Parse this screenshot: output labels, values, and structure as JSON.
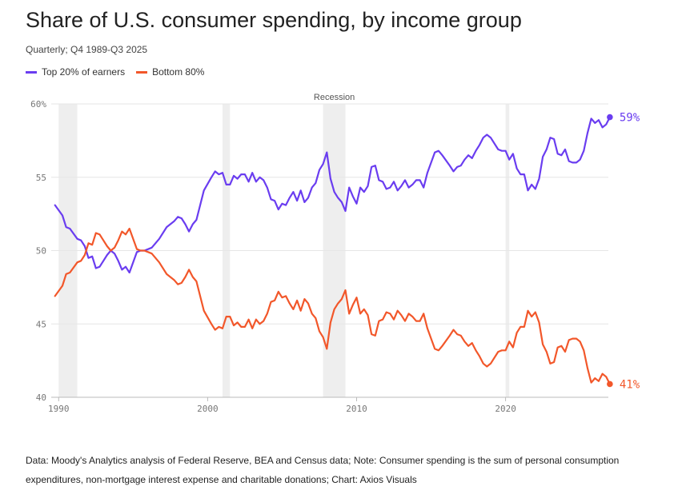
{
  "title": "Share of U.S. consumer spending, by income group",
  "subtitle": "Quarterly; Q4 1989-Q3 2025",
  "legend": {
    "top": "Top 20% of earners",
    "bottom": "Bottom 80%"
  },
  "footer": "Data: Moody's Analytics analysis of Federal Reserve, BEA and Census data; Note: Consumer spending is the sum of personal consumption expenditures, non-mortgage interest expense and charitable donations; Chart: Axios Visuals",
  "colors": {
    "top": "#6a3df0",
    "bottom": "#f2572a",
    "recession": "#eeeeee"
  },
  "chart_data": {
    "type": "line",
    "title": "Share of U.S. consumer spending, by income group",
    "xlabel": "",
    "ylabel": "",
    "xlim": [
      1989.5,
      2026
    ],
    "ylim": [
      40,
      60
    ],
    "x_ticks": [
      "1990",
      "2000",
      "2010",
      "2020"
    ],
    "y_ticks": [
      "60%",
      "55",
      "50",
      "45",
      "40"
    ],
    "recession_label": "Recession",
    "recessions": [
      [
        1990.0,
        1991.25
      ],
      [
        2001.0,
        2001.5
      ],
      [
        2007.75,
        2009.25
      ],
      [
        2020.0,
        2020.25
      ]
    ],
    "end_labels": {
      "top": "59%",
      "bottom": "41%"
    },
    "series": [
      {
        "name": "Top 20% of earners",
        "points": [
          [
            1989.75,
            53.1
          ],
          [
            1990.25,
            52.4
          ],
          [
            1990.5,
            51.6
          ],
          [
            1990.75,
            51.5
          ],
          [
            1991.25,
            50.8
          ],
          [
            1991.5,
            50.7
          ],
          [
            1991.75,
            50.3
          ],
          [
            1992.0,
            49.5
          ],
          [
            1992.25,
            49.6
          ],
          [
            1992.5,
            48.8
          ],
          [
            1992.75,
            48.9
          ],
          [
            1993.25,
            49.7
          ],
          [
            1993.5,
            50.0
          ],
          [
            1993.75,
            49.8
          ],
          [
            1994.0,
            49.3
          ],
          [
            1994.25,
            48.7
          ],
          [
            1994.5,
            48.9
          ],
          [
            1994.75,
            48.5
          ],
          [
            1995.25,
            49.9
          ],
          [
            1995.5,
            50.0
          ],
          [
            1995.75,
            50.0
          ],
          [
            1996.0,
            50.1
          ],
          [
            1996.25,
            50.2
          ],
          [
            1996.75,
            50.8
          ],
          [
            1997.25,
            51.6
          ],
          [
            1997.75,
            52.0
          ],
          [
            1998.0,
            52.3
          ],
          [
            1998.25,
            52.2
          ],
          [
            1998.5,
            51.8
          ],
          [
            1998.75,
            51.3
          ],
          [
            1999.0,
            51.8
          ],
          [
            1999.25,
            52.1
          ],
          [
            1999.75,
            54.1
          ],
          [
            2000.25,
            55.0
          ],
          [
            2000.5,
            55.4
          ],
          [
            2000.75,
            55.2
          ],
          [
            2001.0,
            55.3
          ],
          [
            2001.25,
            54.5
          ],
          [
            2001.5,
            54.5
          ],
          [
            2001.75,
            55.1
          ],
          [
            2002.0,
            54.9
          ],
          [
            2002.25,
            55.2
          ],
          [
            2002.5,
            55.2
          ],
          [
            2002.75,
            54.7
          ],
          [
            2003.0,
            55.3
          ],
          [
            2003.25,
            54.7
          ],
          [
            2003.5,
            55.0
          ],
          [
            2003.75,
            54.8
          ],
          [
            2004.0,
            54.3
          ],
          [
            2004.25,
            53.5
          ],
          [
            2004.5,
            53.4
          ],
          [
            2004.75,
            52.8
          ],
          [
            2005.0,
            53.2
          ],
          [
            2005.25,
            53.1
          ],
          [
            2005.5,
            53.6
          ],
          [
            2005.75,
            54.0
          ],
          [
            2006.0,
            53.4
          ],
          [
            2006.25,
            54.1
          ],
          [
            2006.5,
            53.3
          ],
          [
            2006.75,
            53.6
          ],
          [
            2007.0,
            54.3
          ],
          [
            2007.25,
            54.6
          ],
          [
            2007.5,
            55.5
          ],
          [
            2007.75,
            55.9
          ],
          [
            2008.0,
            56.7
          ],
          [
            2008.25,
            54.9
          ],
          [
            2008.5,
            54.0
          ],
          [
            2008.75,
            53.6
          ],
          [
            2009.0,
            53.3
          ],
          [
            2009.25,
            52.7
          ],
          [
            2009.5,
            54.3
          ],
          [
            2009.75,
            53.7
          ],
          [
            2010.0,
            53.2
          ],
          [
            2010.25,
            54.3
          ],
          [
            2010.5,
            54.0
          ],
          [
            2010.75,
            54.4
          ],
          [
            2011.0,
            55.7
          ],
          [
            2011.25,
            55.8
          ],
          [
            2011.5,
            54.8
          ],
          [
            2011.75,
            54.7
          ],
          [
            2012.0,
            54.2
          ],
          [
            2012.25,
            54.3
          ],
          [
            2012.5,
            54.7
          ],
          [
            2012.75,
            54.1
          ],
          [
            2013.0,
            54.4
          ],
          [
            2013.25,
            54.8
          ],
          [
            2013.5,
            54.3
          ],
          [
            2013.75,
            54.5
          ],
          [
            2014.0,
            54.8
          ],
          [
            2014.25,
            54.8
          ],
          [
            2014.5,
            54.3
          ],
          [
            2014.75,
            55.3
          ],
          [
            2015.25,
            56.7
          ],
          [
            2015.5,
            56.8
          ],
          [
            2015.75,
            56.5
          ],
          [
            2016.25,
            55.8
          ],
          [
            2016.5,
            55.4
          ],
          [
            2016.75,
            55.7
          ],
          [
            2017.0,
            55.8
          ],
          [
            2017.25,
            56.2
          ],
          [
            2017.5,
            56.5
          ],
          [
            2017.75,
            56.3
          ],
          [
            2018.0,
            56.8
          ],
          [
            2018.25,
            57.2
          ],
          [
            2018.5,
            57.7
          ],
          [
            2018.75,
            57.9
          ],
          [
            2019.0,
            57.7
          ],
          [
            2019.5,
            56.9
          ],
          [
            2019.75,
            56.8
          ],
          [
            2020.0,
            56.8
          ],
          [
            2020.25,
            56.2
          ],
          [
            2020.5,
            56.6
          ],
          [
            2020.75,
            55.6
          ],
          [
            2021.0,
            55.2
          ],
          [
            2021.25,
            55.2
          ],
          [
            2021.5,
            54.1
          ],
          [
            2021.75,
            54.5
          ],
          [
            2022.0,
            54.2
          ],
          [
            2022.25,
            54.9
          ],
          [
            2022.5,
            56.4
          ],
          [
            2022.75,
            56.9
          ],
          [
            2023.0,
            57.7
          ],
          [
            2023.25,
            57.6
          ],
          [
            2023.5,
            56.6
          ],
          [
            2023.75,
            56.5
          ],
          [
            2024.0,
            56.9
          ],
          [
            2024.25,
            56.1
          ],
          [
            2024.5,
            56.0
          ],
          [
            2024.75,
            56.0
          ],
          [
            2025.0,
            56.2
          ],
          [
            2025.25,
            56.8
          ],
          [
            2025.5,
            58.0
          ],
          [
            2025.75,
            59.0
          ],
          [
            2026.0,
            58.7
          ],
          [
            2026.25,
            58.9
          ],
          [
            2026.5,
            58.4
          ],
          [
            2026.75,
            58.6
          ],
          [
            2027.0,
            59.1
          ]
        ]
      },
      {
        "name": "Bottom 80%",
        "points": [
          [
            1989.75,
            46.9
          ],
          [
            1990.25,
            47.6
          ],
          [
            1990.5,
            48.4
          ],
          [
            1990.75,
            48.5
          ],
          [
            1991.25,
            49.2
          ],
          [
            1991.5,
            49.3
          ],
          [
            1991.75,
            49.7
          ],
          [
            1992.0,
            50.5
          ],
          [
            1992.25,
            50.4
          ],
          [
            1992.5,
            51.2
          ],
          [
            1992.75,
            51.1
          ],
          [
            1993.25,
            50.3
          ],
          [
            1993.5,
            50.0
          ],
          [
            1993.75,
            50.2
          ],
          [
            1994.0,
            50.7
          ],
          [
            1994.25,
            51.3
          ],
          [
            1994.5,
            51.1
          ],
          [
            1994.75,
            51.5
          ],
          [
            1995.25,
            50.1
          ],
          [
            1995.5,
            50.0
          ],
          [
            1995.75,
            50.0
          ],
          [
            1996.0,
            49.9
          ],
          [
            1996.25,
            49.8
          ],
          [
            1996.75,
            49.2
          ],
          [
            1997.25,
            48.4
          ],
          [
            1997.75,
            48.0
          ],
          [
            1998.0,
            47.7
          ],
          [
            1998.25,
            47.8
          ],
          [
            1998.5,
            48.2
          ],
          [
            1998.75,
            48.7
          ],
          [
            1999.0,
            48.2
          ],
          [
            1999.25,
            47.9
          ],
          [
            1999.75,
            45.9
          ],
          [
            2000.25,
            45.0
          ],
          [
            2000.5,
            44.6
          ],
          [
            2000.75,
            44.8
          ],
          [
            2001.0,
            44.7
          ],
          [
            2001.25,
            45.5
          ],
          [
            2001.5,
            45.5
          ],
          [
            2001.75,
            44.9
          ],
          [
            2002.0,
            45.1
          ],
          [
            2002.25,
            44.8
          ],
          [
            2002.5,
            44.8
          ],
          [
            2002.75,
            45.3
          ],
          [
            2003.0,
            44.7
          ],
          [
            2003.25,
            45.3
          ],
          [
            2003.5,
            45.0
          ],
          [
            2003.75,
            45.2
          ],
          [
            2004.0,
            45.7
          ],
          [
            2004.25,
            46.5
          ],
          [
            2004.5,
            46.6
          ],
          [
            2004.75,
            47.2
          ],
          [
            2005.0,
            46.8
          ],
          [
            2005.25,
            46.9
          ],
          [
            2005.5,
            46.4
          ],
          [
            2005.75,
            46.0
          ],
          [
            2006.0,
            46.6
          ],
          [
            2006.25,
            45.9
          ],
          [
            2006.5,
            46.7
          ],
          [
            2006.75,
            46.4
          ],
          [
            2007.0,
            45.7
          ],
          [
            2007.25,
            45.4
          ],
          [
            2007.5,
            44.5
          ],
          [
            2007.75,
            44.1
          ],
          [
            2008.0,
            43.3
          ],
          [
            2008.25,
            45.1
          ],
          [
            2008.5,
            46.0
          ],
          [
            2008.75,
            46.4
          ],
          [
            2009.0,
            46.7
          ],
          [
            2009.25,
            47.3
          ],
          [
            2009.5,
            45.7
          ],
          [
            2009.75,
            46.3
          ],
          [
            2010.0,
            46.8
          ],
          [
            2010.25,
            45.7
          ],
          [
            2010.5,
            46.0
          ],
          [
            2010.75,
            45.6
          ],
          [
            2011.0,
            44.3
          ],
          [
            2011.25,
            44.2
          ],
          [
            2011.5,
            45.2
          ],
          [
            2011.75,
            45.3
          ],
          [
            2012.0,
            45.8
          ],
          [
            2012.25,
            45.7
          ],
          [
            2012.5,
            45.3
          ],
          [
            2012.75,
            45.9
          ],
          [
            2013.0,
            45.6
          ],
          [
            2013.25,
            45.2
          ],
          [
            2013.5,
            45.7
          ],
          [
            2013.75,
            45.5
          ],
          [
            2014.0,
            45.2
          ],
          [
            2014.25,
            45.2
          ],
          [
            2014.5,
            45.7
          ],
          [
            2014.75,
            44.7
          ],
          [
            2015.25,
            43.3
          ],
          [
            2015.5,
            43.2
          ],
          [
            2015.75,
            43.5
          ],
          [
            2016.25,
            44.2
          ],
          [
            2016.5,
            44.6
          ],
          [
            2016.75,
            44.3
          ],
          [
            2017.0,
            44.2
          ],
          [
            2017.25,
            43.8
          ],
          [
            2017.5,
            43.5
          ],
          [
            2017.75,
            43.7
          ],
          [
            2018.0,
            43.2
          ],
          [
            2018.25,
            42.8
          ],
          [
            2018.5,
            42.3
          ],
          [
            2018.75,
            42.1
          ],
          [
            2019.0,
            42.3
          ],
          [
            2019.5,
            43.1
          ],
          [
            2019.75,
            43.2
          ],
          [
            2020.0,
            43.2
          ],
          [
            2020.25,
            43.8
          ],
          [
            2020.5,
            43.4
          ],
          [
            2020.75,
            44.4
          ],
          [
            2021.0,
            44.8
          ],
          [
            2021.25,
            44.8
          ],
          [
            2021.5,
            45.9
          ],
          [
            2021.75,
            45.5
          ],
          [
            2022.0,
            45.8
          ],
          [
            2022.25,
            45.1
          ],
          [
            2022.5,
            43.6
          ],
          [
            2022.75,
            43.1
          ],
          [
            2023.0,
            42.3
          ],
          [
            2023.25,
            42.4
          ],
          [
            2023.5,
            43.4
          ],
          [
            2023.75,
            43.5
          ],
          [
            2024.0,
            43.1
          ],
          [
            2024.25,
            43.9
          ],
          [
            2024.5,
            44.0
          ],
          [
            2024.75,
            44.0
          ],
          [
            2025.0,
            43.8
          ],
          [
            2025.25,
            43.2
          ],
          [
            2025.5,
            42.0
          ],
          [
            2025.75,
            41.0
          ],
          [
            2026.0,
            41.3
          ],
          [
            2026.25,
            41.1
          ],
          [
            2026.5,
            41.6
          ],
          [
            2026.75,
            41.4
          ],
          [
            2027.0,
            40.9
          ]
        ]
      }
    ]
  }
}
